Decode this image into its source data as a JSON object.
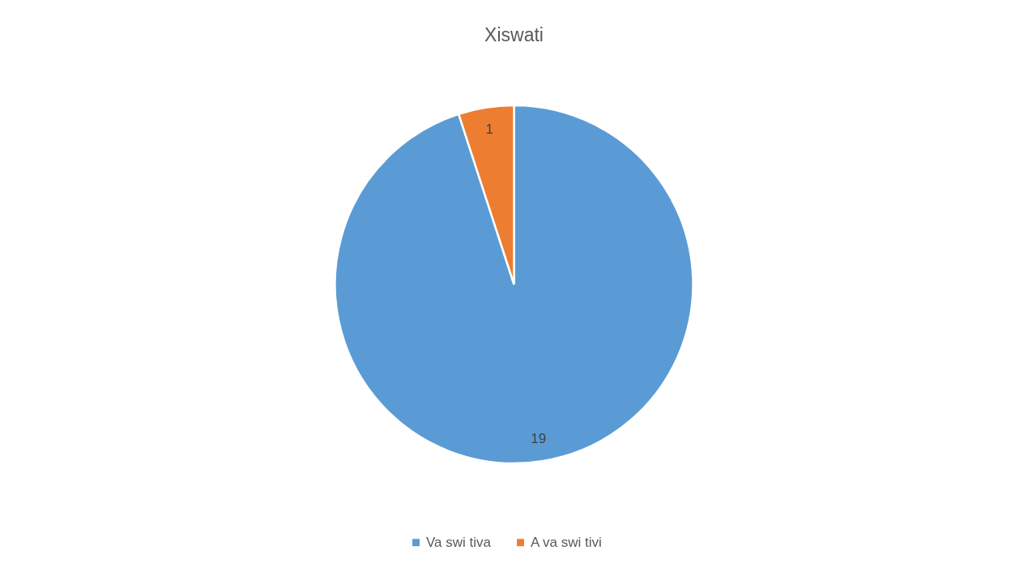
{
  "chart_data": {
    "type": "pie",
    "title": "Xiswati",
    "categories": [
      "Va swi tiva",
      "A va swi tivi"
    ],
    "values": [
      19,
      1
    ],
    "colors": [
      "#5b9bd5",
      "#ed7d31"
    ],
    "data_labels": true,
    "legend": "bottom"
  }
}
